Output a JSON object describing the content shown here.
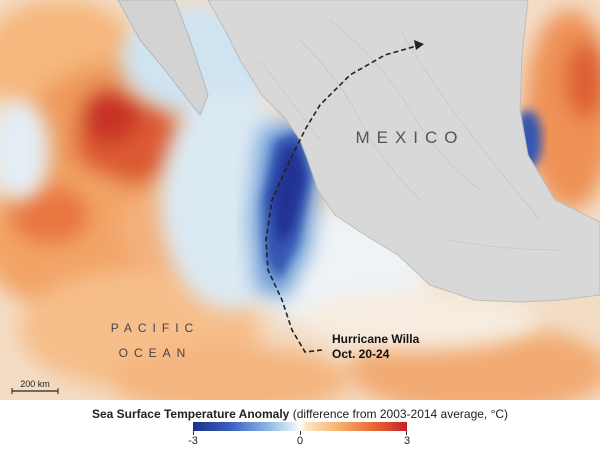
{
  "map": {
    "land_label": "MEXICO",
    "ocean_label_line1": "PACIFIC",
    "ocean_label_line2": "OCEAN",
    "track_label_line1": "Hurricane Willa",
    "track_label_line2": "Oct. 20-24",
    "scale_label": "200 km"
  },
  "legend": {
    "title_bold": "Sea Surface Temperature Anomaly",
    "title_rest": " (difference from 2003-2014 average, °C)",
    "min_label": "-3",
    "mid_label": "0",
    "max_label": "3"
  },
  "colors": {
    "land": "#d6d6d6",
    "cold": "#2a3fa6",
    "warm": "#e05a2c",
    "neutral": "#f5f6f6"
  }
}
